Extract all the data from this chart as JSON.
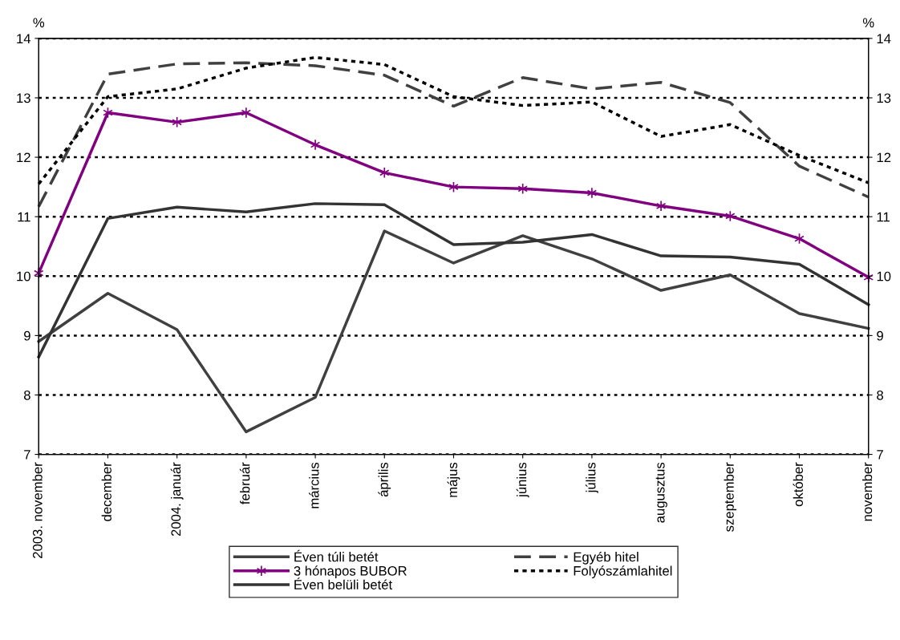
{
  "chart_data": {
    "type": "line",
    "categories": [
      "2003. november",
      "december",
      "2004. január",
      "február",
      "március",
      "április",
      "május",
      "június",
      "július",
      "augusztus",
      "szeptember",
      "október",
      "november"
    ],
    "ylabel": "%",
    "y2label": "%",
    "ylim": [
      7,
      14
    ],
    "yticks": [
      7,
      8,
      9,
      10,
      11,
      12,
      13,
      14
    ],
    "y2lim": [
      7,
      14
    ],
    "y2ticks": [
      7,
      8,
      9,
      10,
      11,
      12,
      13,
      14
    ],
    "grid": "y",
    "legend": "bottom",
    "series": [
      {
        "name": "Éven túli betét",
        "color": "#404040",
        "marker": "none",
        "line_style": "solid",
        "values": [
          8.9,
          9.71,
          9.1,
          7.38,
          7.96,
          10.76,
          10.22,
          10.68,
          10.29,
          9.76,
          10.02,
          9.37,
          9.12
        ]
      },
      {
        "name": "3 hónapos BUBOR",
        "color": "#800080",
        "marker": "cross",
        "line_style": "solid",
        "values": [
          10.05,
          12.75,
          12.59,
          12.75,
          12.21,
          11.74,
          11.5,
          11.47,
          11.4,
          11.18,
          11.01,
          10.63,
          9.98
        ]
      },
      {
        "name": "Éven belüli betét",
        "color": "#333333",
        "marker": "none",
        "line_style": "solid",
        "values": [
          8.64,
          10.97,
          11.16,
          11.08,
          11.22,
          11.2,
          10.53,
          10.57,
          10.7,
          10.34,
          10.32,
          10.2,
          9.52
        ]
      },
      {
        "name": "Egyéb hitel",
        "color": "#404040",
        "marker": "none",
        "line_style": "dashed",
        "values": [
          11.17,
          13.4,
          13.57,
          13.59,
          13.54,
          13.38,
          12.86,
          13.34,
          13.15,
          13.26,
          12.92,
          11.85,
          11.33
        ]
      },
      {
        "name": "Folyószámlahitel",
        "color": "#000000",
        "marker": "none",
        "line_style": "dotted",
        "values": [
          11.55,
          13.02,
          13.15,
          13.5,
          13.68,
          13.56,
          13.02,
          12.87,
          12.93,
          12.35,
          12.55,
          12.03,
          11.57
        ]
      }
    ]
  }
}
